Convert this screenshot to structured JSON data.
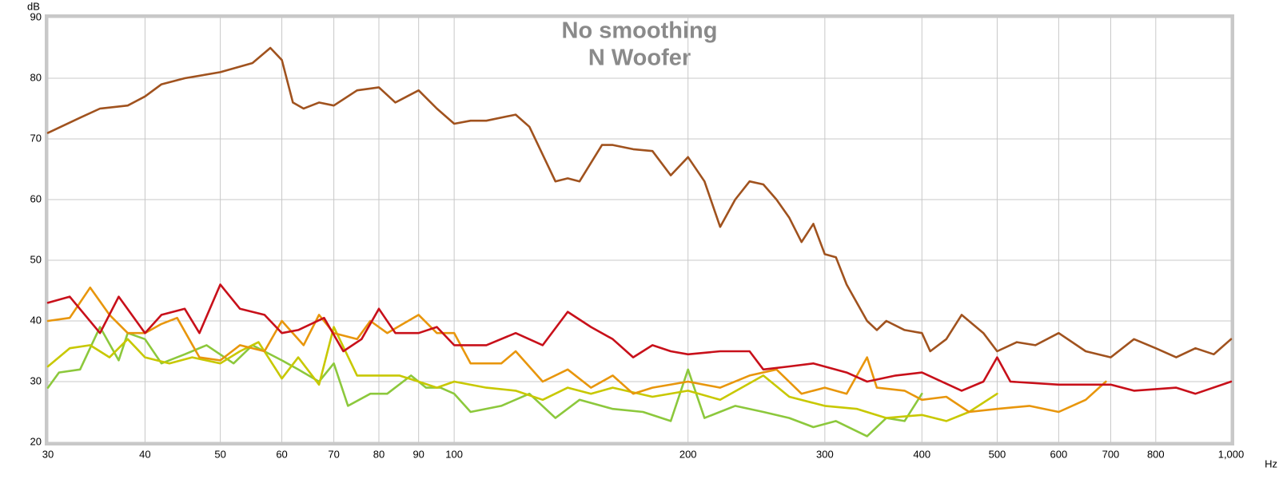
{
  "chart_data": {
    "type": "line",
    "title": "No smoothing",
    "subtitle": "N Woofer",
    "xlabel": "Hz",
    "ylabel": "dB",
    "xscale": "log",
    "grid": true,
    "xlim": [
      30,
      1000
    ],
    "ylim": [
      20,
      90
    ],
    "xticks": [
      30,
      40,
      50,
      60,
      70,
      80,
      90,
      100,
      200,
      300,
      400,
      500,
      600,
      700,
      800,
      {
        "value": 1000,
        "label": "1,000"
      }
    ],
    "yticks": [
      20,
      30,
      40,
      50,
      60,
      70,
      80,
      90
    ],
    "series": [
      {
        "name": "Brown",
        "color": "#a0521e",
        "x": [
          30,
          33,
          35,
          38,
          40,
          42,
          45,
          50,
          55,
          58,
          60,
          62,
          64,
          67,
          70,
          75,
          80,
          84,
          90,
          95,
          100,
          105,
          110,
          120,
          125,
          135,
          140,
          145,
          155,
          160,
          170,
          180,
          190,
          200,
          210,
          220,
          230,
          240,
          250,
          260,
          270,
          280,
          290,
          300,
          310,
          320,
          340,
          350,
          360,
          380,
          400,
          410,
          430,
          450,
          480,
          500,
          530,
          560,
          600,
          650,
          700,
          750,
          800,
          850,
          900,
          950,
          1000
        ],
        "values": [
          71,
          73.5,
          75,
          75.5,
          77,
          79,
          80,
          81,
          82.5,
          85,
          83,
          76,
          75,
          76,
          75.5,
          78,
          78.5,
          76,
          78,
          75,
          72.5,
          73,
          73,
          74,
          72,
          63,
          63.5,
          63,
          69,
          69,
          68.3,
          68,
          64,
          67,
          63,
          55.5,
          60,
          63,
          62.5,
          60,
          57,
          53,
          56,
          51,
          50.5,
          46,
          40,
          38.5,
          40,
          38.5,
          38,
          35,
          37,
          41,
          38,
          35,
          36.5,
          36,
          38,
          35,
          34,
          37,
          35.5,
          34,
          35.5,
          34.5,
          37
        ]
      },
      {
        "name": "Red",
        "color": "#c8101a",
        "x": [
          30,
          32,
          35,
          37,
          40,
          42,
          45,
          47,
          50,
          53,
          57,
          60,
          63,
          68,
          72,
          76,
          80,
          84,
          90,
          95,
          100,
          110,
          120,
          130,
          140,
          150,
          160,
          170,
          180,
          190,
          200,
          220,
          240,
          250,
          270,
          290,
          320,
          340,
          370,
          400,
          450,
          480,
          500,
          520,
          600,
          700,
          750,
          850,
          900,
          1000
        ],
        "values": [
          43,
          44,
          38,
          44,
          38,
          41,
          42,
          38,
          46,
          42,
          41,
          38,
          38.5,
          40.5,
          35,
          37,
          42,
          38,
          38,
          39,
          36,
          36,
          38,
          36,
          41.5,
          39,
          37,
          34,
          36,
          35,
          34.5,
          35,
          35,
          32,
          32.5,
          33,
          31.5,
          30,
          31,
          31.5,
          28.5,
          30,
          34,
          30,
          29.5,
          29.5,
          28.5,
          29,
          28,
          30
        ]
      },
      {
        "name": "Orange",
        "color": "#e8960c",
        "x": [
          30,
          32,
          34,
          36,
          38,
          40,
          42,
          44,
          47,
          50,
          53,
          57,
          60,
          64,
          67,
          70,
          75,
          78,
          82,
          90,
          95,
          100,
          105,
          115,
          120,
          130,
          140,
          150,
          160,
          170,
          180,
          200,
          220,
          240,
          260,
          280,
          300,
          320,
          340,
          350,
          380,
          400,
          430,
          460,
          500,
          550,
          600,
          650,
          690
        ],
        "values": [
          40,
          40.5,
          45.5,
          41,
          38,
          38,
          39.5,
          40.5,
          34,
          33.5,
          36,
          35,
          40,
          36,
          41,
          38,
          37,
          40,
          38,
          41,
          38,
          38,
          33,
          33,
          35,
          30,
          32,
          29,
          31,
          28,
          29,
          30,
          29,
          31,
          32,
          28,
          29,
          28,
          34,
          29,
          28.5,
          27,
          27.5,
          25,
          25.5,
          26,
          25,
          27,
          30
        ]
      },
      {
        "name": "Yellow",
        "color": "#c8c800",
        "x": [
          30,
          32,
          34,
          36,
          38,
          40,
          43,
          46,
          50,
          53,
          56,
          60,
          63,
          67,
          70,
          75,
          80,
          85,
          90,
          95,
          100,
          110,
          120,
          130,
          140,
          150,
          160,
          180,
          200,
          220,
          250,
          270,
          300,
          330,
          360,
          400,
          430,
          460,
          500
        ],
        "values": [
          32.5,
          35.5,
          36,
          34,
          37,
          34,
          33,
          34,
          33,
          35,
          36.5,
          30.5,
          34,
          29.5,
          39,
          31,
          31,
          31,
          30,
          29,
          30,
          29,
          28.5,
          27,
          29,
          28,
          29,
          27.5,
          28.5,
          27,
          31,
          27.5,
          26,
          25.5,
          24,
          24.5,
          23.5,
          25,
          28
        ]
      },
      {
        "name": "Green",
        "color": "#8cc83c",
        "x": [
          30,
          31,
          33,
          35,
          37,
          38,
          40,
          42,
          45,
          48,
          52,
          55,
          60,
          63,
          67,
          70,
          73,
          78,
          82,
          88,
          92,
          96,
          100,
          105,
          115,
          125,
          135,
          145,
          160,
          175,
          190,
          200,
          210,
          230,
          250,
          270,
          290,
          310,
          340,
          360,
          380,
          400
        ],
        "values": [
          29,
          31.5,
          32,
          39,
          33.5,
          38,
          37,
          33,
          34.5,
          36,
          33,
          36,
          33.5,
          32,
          30,
          33,
          26,
          28,
          28,
          31,
          29,
          29,
          28,
          25,
          26,
          28,
          24,
          27,
          25.5,
          25,
          23.5,
          32,
          24,
          26,
          25,
          24,
          22.5,
          23.5,
          21,
          24,
          23.5,
          28
        ]
      }
    ]
  }
}
